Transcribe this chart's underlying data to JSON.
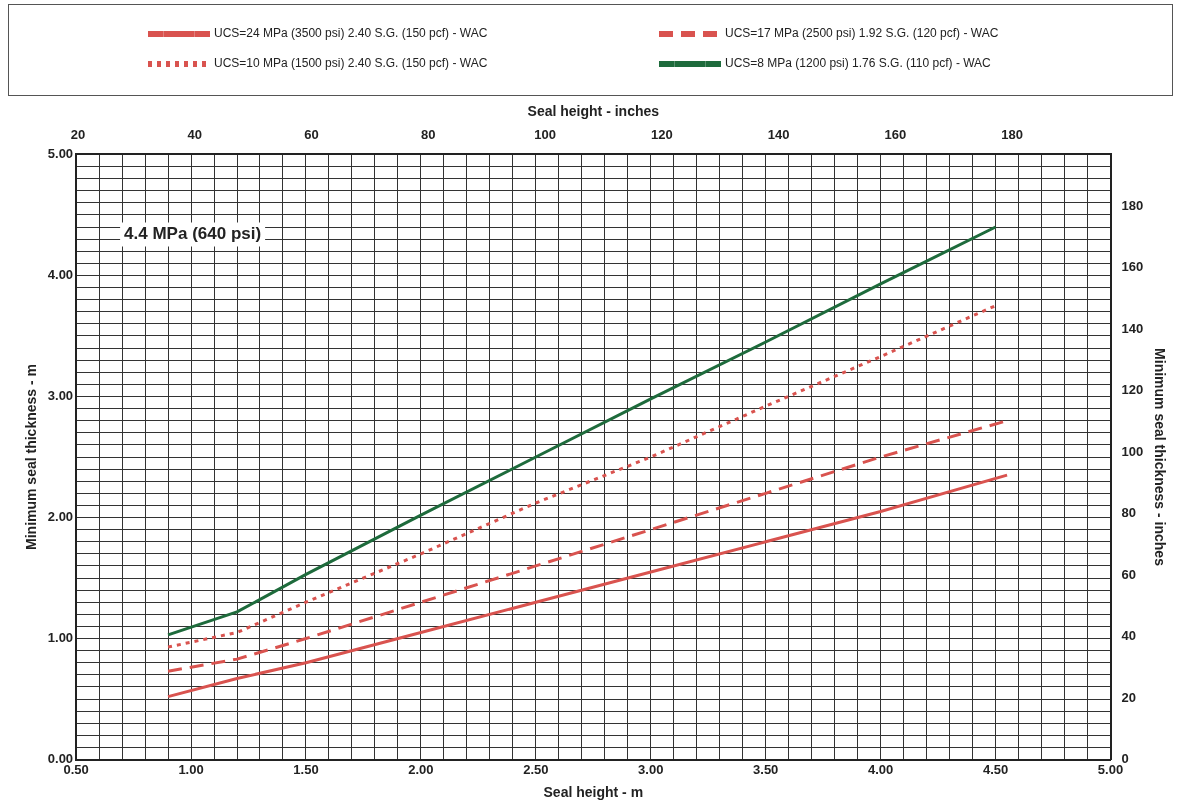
{
  "chart_data": {
    "type": "line",
    "xlabel": "Seal height - m",
    "ylabel": "Minimum seal thickness - m",
    "x2label": "Seal height - inches",
    "y2label": "Minimum seal thickness - inches",
    "annotations": [
      "4.4 MPa (640 psi)"
    ],
    "legend": "top",
    "grid": true,
    "marker": "none",
    "xlim": [
      0.5,
      5.0
    ],
    "ylim": [
      0,
      5.0
    ],
    "xticks": [
      {
        "value": 0.5,
        "label": "0.50"
      },
      {
        "value": 0.6,
        "label": null
      },
      {
        "value": 0.7,
        "label": null
      },
      {
        "value": 0.8,
        "label": null
      },
      {
        "value": 0.9,
        "label": null
      },
      {
        "value": 1.0,
        "label": "1.00"
      },
      {
        "value": 1.1,
        "label": null
      },
      {
        "value": 1.2,
        "label": null
      },
      {
        "value": 1.3,
        "label": null
      },
      {
        "value": 1.4,
        "label": null
      },
      {
        "value": 1.5,
        "label": "1.50"
      },
      {
        "value": 1.6,
        "label": null
      },
      {
        "value": 1.7,
        "label": null
      },
      {
        "value": 1.8,
        "label": null
      },
      {
        "value": 1.9,
        "label": null
      },
      {
        "value": 2.0,
        "label": "2.00"
      },
      {
        "value": 2.1,
        "label": null
      },
      {
        "value": 2.2,
        "label": null
      },
      {
        "value": 2.3,
        "label": null
      },
      {
        "value": 2.4,
        "label": null
      },
      {
        "value": 2.5,
        "label": "2.50"
      },
      {
        "value": 2.6,
        "label": null
      },
      {
        "value": 2.7,
        "label": null
      },
      {
        "value": 2.8,
        "label": null
      },
      {
        "value": 2.9,
        "label": null
      },
      {
        "value": 3.0,
        "label": "3.00"
      },
      {
        "value": 3.1,
        "label": null
      },
      {
        "value": 3.2,
        "label": null
      },
      {
        "value": 3.3,
        "label": null
      },
      {
        "value": 3.4,
        "label": null
      },
      {
        "value": 3.5,
        "label": "3.50"
      },
      {
        "value": 3.6,
        "label": null
      },
      {
        "value": 3.7,
        "label": null
      },
      {
        "value": 3.8,
        "label": null
      },
      {
        "value": 3.9,
        "label": null
      },
      {
        "value": 4.0,
        "label": "4.00"
      },
      {
        "value": 4.1,
        "label": null
      },
      {
        "value": 4.2,
        "label": null
      },
      {
        "value": 4.3,
        "label": null
      },
      {
        "value": 4.4,
        "label": null
      },
      {
        "value": 4.5,
        "label": "4.50"
      },
      {
        "value": 4.6,
        "label": null
      },
      {
        "value": 4.7,
        "label": null
      },
      {
        "value": 4.8,
        "label": null
      },
      {
        "value": 4.9,
        "label": null
      },
      {
        "value": 5.0,
        "label": "5.00"
      }
    ],
    "yticks": [
      {
        "value": 0,
        "label": "0.00"
      },
      {
        "value": 0.1,
        "label": null
      },
      {
        "value": 0.2,
        "label": null
      },
      {
        "value": 0.3,
        "label": null
      },
      {
        "value": 0.4,
        "label": null
      },
      {
        "value": 0.5,
        "label": null
      },
      {
        "value": 0.6,
        "label": null
      },
      {
        "value": 0.7,
        "label": null
      },
      {
        "value": 0.8,
        "label": null
      },
      {
        "value": 0.9,
        "label": null
      },
      {
        "value": 1.0,
        "label": "1.00"
      },
      {
        "value": 1.1,
        "label": null
      },
      {
        "value": 1.2,
        "label": null
      },
      {
        "value": 1.3,
        "label": null
      },
      {
        "value": 1.4,
        "label": null
      },
      {
        "value": 1.5,
        "label": null
      },
      {
        "value": 1.6,
        "label": null
      },
      {
        "value": 1.7,
        "label": null
      },
      {
        "value": 1.8,
        "label": null
      },
      {
        "value": 1.9,
        "label": null
      },
      {
        "value": 2.0,
        "label": "2.00"
      },
      {
        "value": 2.1,
        "label": null
      },
      {
        "value": 2.2,
        "label": null
      },
      {
        "value": 2.3,
        "label": null
      },
      {
        "value": 2.4,
        "label": null
      },
      {
        "value": 2.5,
        "label": null
      },
      {
        "value": 2.6,
        "label": null
      },
      {
        "value": 2.7,
        "label": null
      },
      {
        "value": 2.8,
        "label": null
      },
      {
        "value": 2.9,
        "label": null
      },
      {
        "value": 3.0,
        "label": "3.00"
      },
      {
        "value": 3.1,
        "label": null
      },
      {
        "value": 3.2,
        "label": null
      },
      {
        "value": 3.3,
        "label": null
      },
      {
        "value": 3.4,
        "label": null
      },
      {
        "value": 3.5,
        "label": null
      },
      {
        "value": 3.6,
        "label": null
      },
      {
        "value": 3.7,
        "label": null
      },
      {
        "value": 3.8,
        "label": null
      },
      {
        "value": 3.9,
        "label": null
      },
      {
        "value": 4.0,
        "label": "4.00"
      },
      {
        "value": 4.1,
        "label": null
      },
      {
        "value": 4.2,
        "label": null
      },
      {
        "value": 4.3,
        "label": null
      },
      {
        "value": 4.4,
        "label": null
      },
      {
        "value": 4.5,
        "label": null
      },
      {
        "value": 4.6,
        "label": null
      },
      {
        "value": 4.7,
        "label": null
      },
      {
        "value": 4.8,
        "label": null
      },
      {
        "value": 4.9,
        "label": null
      },
      {
        "value": 5.0,
        "label": "5.00"
      }
    ],
    "x2lim": [
      19.685,
      196.85
    ],
    "x2ticks": [
      20,
      40,
      60,
      80,
      100,
      120,
      140,
      160,
      180
    ],
    "y2lim": [
      0,
      196.85
    ],
    "y2ticks": [
      0,
      20,
      40,
      60,
      80,
      100,
      120,
      140,
      160,
      180
    ],
    "series": [
      {
        "name": "UCS=24 MPa (3500 psi) 2.40 S.G. (150 pcf) - WAC",
        "color": "#d9534f",
        "line_style": "solid",
        "x": [
          0.9,
          1.2,
          1.5,
          2.0,
          2.5,
          3.0,
          3.5,
          4.0,
          4.55
        ],
        "values": [
          0.52,
          0.67,
          0.8,
          1.05,
          1.3,
          1.55,
          1.8,
          2.05,
          2.35
        ]
      },
      {
        "name": "UCS=17 MPa (2500 psi) 1.92 S.G. (120 pcf) - WAC",
        "color": "#d9534f",
        "line_style": "dashed",
        "x": [
          0.9,
          1.2,
          1.5,
          2.0,
          2.5,
          3.0,
          3.5,
          4.0,
          4.55
        ],
        "values": [
          0.73,
          0.83,
          1.0,
          1.3,
          1.6,
          1.9,
          2.2,
          2.5,
          2.8
        ]
      },
      {
        "name": "UCS=10 MPa (1500 psi) 2.40 S.G. (150 pcf) - WAC",
        "color": "#d9534f",
        "line_style": "dotted",
        "x": [
          0.9,
          1.2,
          1.5,
          2.0,
          2.5,
          3.0,
          3.5,
          4.0,
          4.5
        ],
        "values": [
          0.93,
          1.05,
          1.3,
          1.7,
          2.12,
          2.5,
          2.92,
          3.33,
          3.75
        ]
      },
      {
        "name": "UCS=8 MPa (1200 psi) 1.76 S.G. (110 pcf) - WAC",
        "color": "#1e6b3c",
        "line_style": "solid",
        "x": [
          0.9,
          1.2,
          1.5,
          2.0,
          2.5,
          3.0,
          3.5,
          4.0,
          4.5
        ],
        "values": [
          1.03,
          1.22,
          1.53,
          2.02,
          2.5,
          2.98,
          3.45,
          3.93,
          4.4
        ]
      }
    ]
  }
}
